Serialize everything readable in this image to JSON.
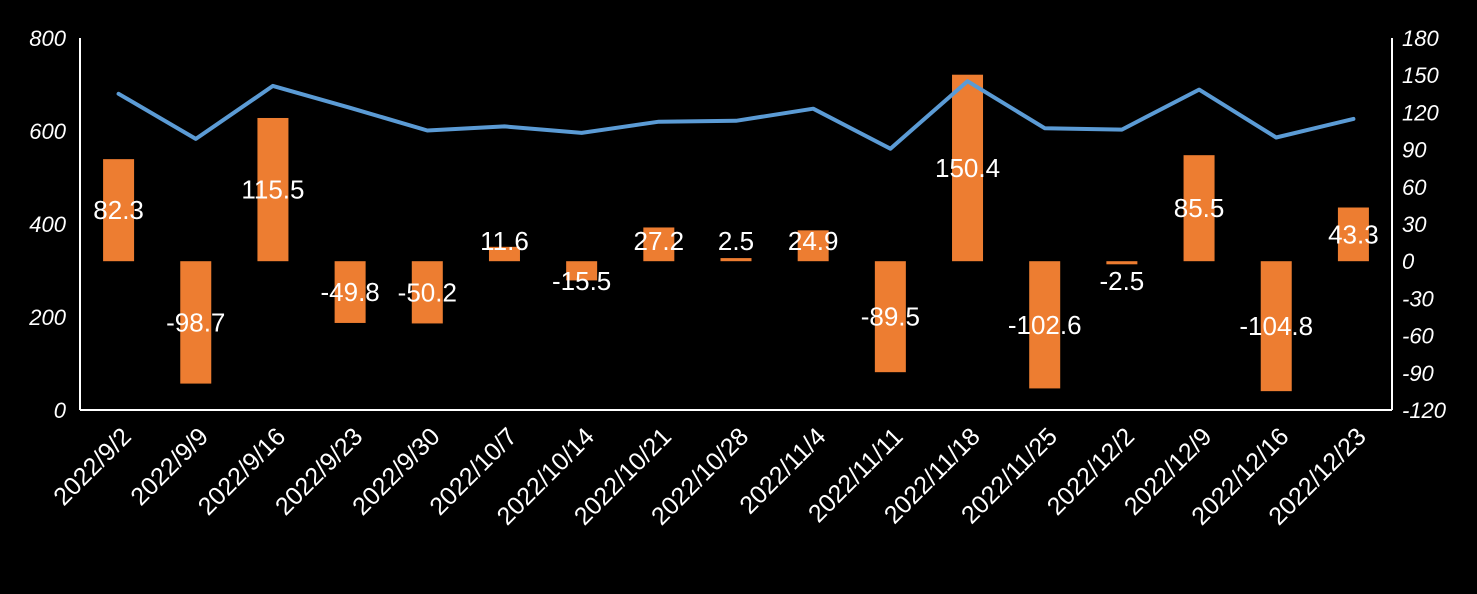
{
  "chart_data": {
    "type": "bar",
    "title": "",
    "xlabel": "",
    "ylabel": "",
    "categories": [
      "2022/9/2",
      "2022/9/9",
      "2022/9/16",
      "2022/9/23",
      "2022/9/30",
      "2022/10/7",
      "2022/10/14",
      "2022/10/21",
      "2022/10/28",
      "2022/11/4",
      "2022/11/11",
      "2022/11/18",
      "2022/11/25",
      "2022/12/2",
      "2022/12/9",
      "2022/12/16",
      "2022/12/23"
    ],
    "series": [
      {
        "name": "",
        "type": "line",
        "axis": "left",
        "color": "#5b9bd5",
        "values": [
          680,
          583,
          697,
          650,
          601,
          610,
          596,
          620,
          622,
          648,
          562,
          707,
          606,
          603,
          689,
          586,
          626
        ]
      },
      {
        "name": "",
        "type": "bar",
        "axis": "right",
        "color": "#ed7d31",
        "values": [
          82.3,
          -98.7,
          115.5,
          -49.8,
          -50.2,
          11.6,
          -15.5,
          27.2,
          2.5,
          24.9,
          -89.5,
          150.4,
          -102.6,
          -2.5,
          85.5,
          -104.8,
          43.3
        ],
        "labels": [
          "82.3",
          "-98.7",
          "115.5",
          "-49.8",
          "-50.2",
          "11.6",
          "-15.5",
          "27.2",
          "2.5",
          "24.9",
          "-89.5",
          "150.4",
          "-102.6",
          "-2.5",
          "85.5",
          "-104.8",
          "43.3"
        ]
      }
    ],
    "y_left": {
      "min": 0,
      "max": 800,
      "ticks": [
        "0",
        "200",
        "400",
        "600",
        "800"
      ]
    },
    "y_right": {
      "min": -120,
      "max": 180,
      "ticks": [
        "-120",
        "-90",
        "-60",
        "-30",
        "0",
        "30",
        "60",
        "90",
        "120",
        "150",
        "180"
      ]
    },
    "grid": false,
    "legend": "none",
    "text_color": "#ffffff",
    "axis_color": "#ffffff",
    "background": "#000000"
  }
}
